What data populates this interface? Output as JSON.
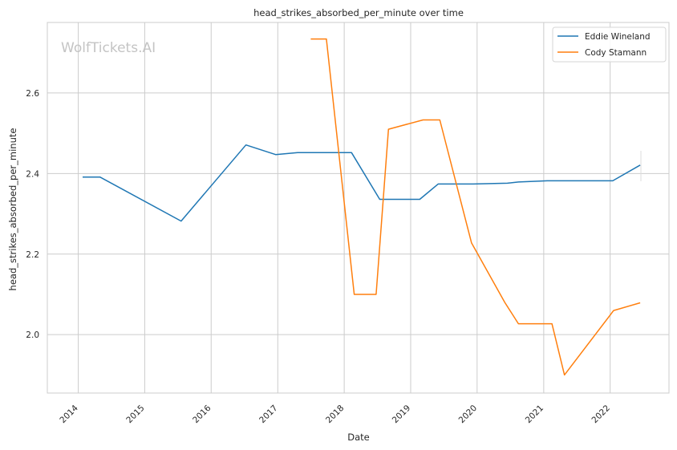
{
  "chart_data": {
    "type": "line",
    "title": "head_strikes_absorbed_per_minute over time",
    "xlabel": "Date",
    "ylabel": "head_strikes_absorbed_per_minute",
    "watermark": "WolfTickets.AI",
    "xlim": [
      "2013-07-15",
      "2022-11-20"
    ],
    "ylim": [
      1.855,
      2.775
    ],
    "x_ticks": [
      "2014",
      "2015",
      "2016",
      "2017",
      "2018",
      "2019",
      "2020",
      "2021",
      "2022"
    ],
    "y_ticks": [
      2.0,
      2.2,
      2.4,
      2.6
    ],
    "y_tick_labels": [
      "2.0",
      "2.2",
      "2.4",
      "2.6"
    ],
    "grid": true,
    "legend_position": "top-right",
    "series": [
      {
        "name": "Eddie Wineland",
        "color": "#1f77b4",
        "points": [
          [
            "2014-01-25",
            2.391
          ],
          [
            "2014-05-01",
            2.391
          ],
          [
            "2015-07-20",
            2.282
          ],
          [
            "2016-07-10",
            2.471
          ],
          [
            "2016-12-20",
            2.447
          ],
          [
            "2017-04-20",
            2.452
          ],
          [
            "2018-02-10",
            2.452
          ],
          [
            "2018-07-15",
            2.336
          ],
          [
            "2019-02-20",
            2.336
          ],
          [
            "2019-06-01",
            2.374
          ],
          [
            "2019-12-10",
            2.374
          ],
          [
            "2020-06-15",
            2.376
          ],
          [
            "2020-08-15",
            2.379
          ],
          [
            "2021-01-20",
            2.382
          ],
          [
            "2022-01-15",
            2.382
          ],
          [
            "2022-06-15",
            2.421
          ]
        ]
      },
      {
        "name": "Cody Stamann",
        "color": "#ff7f0e",
        "points": [
          [
            "2017-07-01",
            2.734
          ],
          [
            "2017-09-25",
            2.734
          ],
          [
            "2018-02-25",
            2.1
          ],
          [
            "2018-06-25",
            2.1
          ],
          [
            "2018-09-01",
            2.51
          ],
          [
            "2019-03-10",
            2.533
          ],
          [
            "2019-06-10",
            2.533
          ],
          [
            "2019-12-01",
            2.228
          ],
          [
            "2020-06-01",
            2.08
          ],
          [
            "2020-08-15",
            2.027
          ],
          [
            "2021-02-15",
            2.027
          ],
          [
            "2021-04-25",
            1.9
          ],
          [
            "2022-01-20",
            2.06
          ],
          [
            "2022-06-15",
            2.079
          ]
        ]
      }
    ]
  }
}
